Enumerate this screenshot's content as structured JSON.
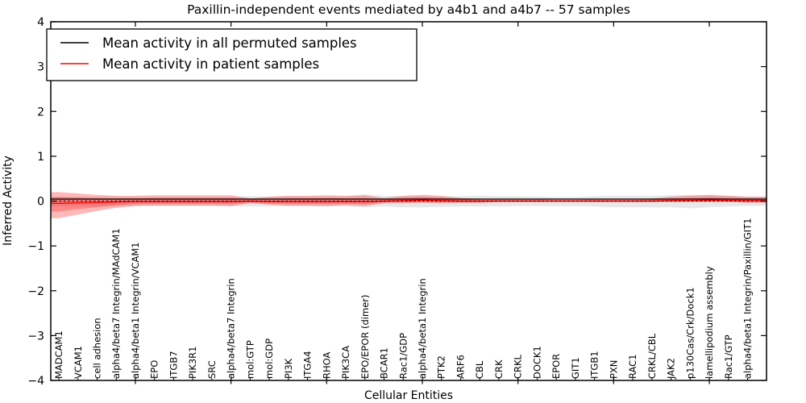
{
  "figure": {
    "title": "Paxillin-independent events mediated by a4b1 and a4b7 -- 57 samples",
    "background": "#ffffff"
  },
  "axes": {
    "ylabel": "Inferred Activity",
    "xlabel": "Cellular Entities"
  },
  "legend": {
    "entries": [
      {
        "label": "Mean activity in all permuted samples",
        "color": "#000000"
      },
      {
        "label": "Mean activity in patient samples",
        "color": "#ff0000"
      }
    ]
  },
  "chart_data": {
    "type": "line",
    "title": "Paxillin-independent events mediated by a4b1 and a4b7 -- 57 samples",
    "xlabel": "Cellular Entities",
    "ylabel": "Inferred Activity",
    "ylim": [
      -4,
      4
    ],
    "grid": false,
    "legend_position": "upper left",
    "y_ticks": [
      {
        "value": -4,
        "label": "−4"
      },
      {
        "value": -3,
        "label": "−3"
      },
      {
        "value": -2,
        "label": "−2"
      },
      {
        "value": -1,
        "label": "−1"
      },
      {
        "value": 0,
        "label": "0"
      },
      {
        "value": 1,
        "label": "1"
      },
      {
        "value": 2,
        "label": "2"
      },
      {
        "value": 3,
        "label": "3"
      },
      {
        "value": 4,
        "label": "4"
      }
    ],
    "x_major_tick_indices": [
      4,
      9,
      14,
      19,
      24,
      29,
      34
    ],
    "categories": [
      "MADCAM1",
      "VCAM1",
      "cell adhesion",
      "alpha4/beta7 Integrin/MAdCAM1",
      "alpha4/beta1 Integrin/VCAM1",
      "EPO",
      "ITGB7",
      "PIK3R1",
      "SRC",
      "alpha4/beta7 Integrin",
      "mol:GTP",
      "mol:GDP",
      "PI3K",
      "ITGA4",
      "RHOA",
      "PIK3CA",
      "EPO/EPOR (dimer)",
      "BCAR1",
      "Rac1/GDP",
      "alpha4/beta1 Integrin",
      "PTK2",
      "ARF6",
      "CBL",
      "CRK",
      "CRKL",
      "DOCK1",
      "EPOR",
      "GIT1",
      "ITGB1",
      "PXN",
      "RAC1",
      "CRKL/CBL",
      "JAK2",
      "p130Cas/Crk/Dock1",
      "lamellipodium assembly",
      "Rac1/GTP",
      "alpha4/beta1 Integrin/Paxillin/GIT1"
    ],
    "series": [
      {
        "name": "Mean activity in all permuted samples",
        "color": "#000000",
        "style": "solid",
        "width": 1.3,
        "values": [
          0.045,
          0.045,
          0.045,
          0.045,
          0.045,
          0.045,
          0.045,
          0.045,
          0.045,
          0.045,
          0.045,
          0.045,
          0.045,
          0.045,
          0.045,
          0.045,
          0.045,
          0.045,
          0.045,
          0.045,
          0.045,
          0.045,
          0.045,
          0.045,
          0.045,
          0.045,
          0.045,
          0.045,
          0.045,
          0.045,
          0.045,
          0.045,
          0.045,
          0.045,
          0.045,
          0.045,
          0.045
        ]
      },
      {
        "name": "Mean activity in patient samples",
        "color": "#ff0000",
        "style": "solid",
        "width": 1.4,
        "values": [
          -0.05,
          -0.04,
          -0.03,
          -0.02,
          -0.01,
          -0.01,
          -0.01,
          -0.01,
          -0.01,
          -0.01,
          0,
          -0.01,
          -0.01,
          -0.01,
          -0.01,
          -0.01,
          -0.01,
          0,
          0.01,
          0.02,
          0.01,
          0,
          0,
          0,
          0,
          0,
          0,
          0,
          0,
          0,
          0,
          0,
          0.01,
          0.015,
          0.02,
          0.015,
          0.01
        ]
      },
      {
        "name": "zero-reference",
        "color": "#000000",
        "style": "dashed",
        "width": 1.0,
        "values": [
          0,
          0,
          0,
          0,
          0,
          0,
          0,
          0,
          0,
          0,
          0,
          0,
          0,
          0,
          0,
          0,
          0,
          0,
          0,
          0,
          0,
          0,
          0,
          0,
          0,
          0,
          0,
          0,
          0,
          0,
          0,
          0,
          0,
          0,
          0,
          0,
          0
        ]
      }
    ],
    "bands": [
      {
        "name": "permuted-samples-std",
        "color": "#000000",
        "opacity": 0.09,
        "upper": [
          0.1,
          0.1,
          0.1,
          0.09,
          0.09,
          0.09,
          0.09,
          0.09,
          0.1,
          0.1,
          0.11,
          0.1,
          0.1,
          0.1,
          0.1,
          0.1,
          0.15,
          0.12,
          0.11,
          0.11,
          0.1,
          0.11,
          0.12,
          0.11,
          0.11,
          0.1,
          0.09,
          0.09,
          0.11,
          0.12,
          0.12,
          0.12,
          0.13,
          0.14,
          0.13,
          0.12,
          0.1
        ],
        "lower": [
          -0.12,
          -0.12,
          -0.12,
          -0.12,
          -0.11,
          -0.11,
          -0.11,
          -0.11,
          -0.11,
          -0.12,
          -0.12,
          -0.12,
          -0.12,
          -0.12,
          -0.12,
          -0.12,
          -0.14,
          -0.12,
          -0.14,
          -0.14,
          -0.13,
          -0.12,
          -0.12,
          -0.12,
          -0.11,
          -0.11,
          -0.11,
          -0.11,
          -0.12,
          -0.14,
          -0.14,
          -0.14,
          -0.14,
          -0.16,
          -0.14,
          -0.12,
          -0.11
        ]
      },
      {
        "name": "patient-samples-std-outer",
        "color": "#ff0000",
        "opacity": 0.28,
        "upper": [
          0.2,
          0.17,
          0.14,
          0.12,
          0.12,
          0.13,
          0.13,
          0.13,
          0.13,
          0.13,
          0.06,
          0.1,
          0.12,
          0.12,
          0.13,
          0.12,
          0.13,
          0.07,
          0.12,
          0.14,
          0.12,
          0.07,
          0.05,
          0.04,
          0.04,
          0.04,
          0.03,
          0.03,
          0.04,
          0.04,
          0.04,
          0.06,
          0.1,
          0.12,
          0.14,
          0.12,
          0.1
        ],
        "lower": [
          -0.38,
          -0.3,
          -0.22,
          -0.15,
          -0.11,
          -0.1,
          -0.1,
          -0.1,
          -0.1,
          -0.11,
          -0.05,
          -0.08,
          -0.1,
          -0.1,
          -0.11,
          -0.09,
          -0.11,
          -0.05,
          -0.05,
          -0.04,
          -0.05,
          -0.04,
          -0.04,
          -0.02,
          -0.02,
          -0.02,
          -0.015,
          -0.015,
          -0.02,
          -0.02,
          -0.02,
          -0.02,
          -0.02,
          -0.02,
          -0.02,
          -0.02,
          -0.04
        ]
      },
      {
        "name": "patient-samples-std-inner",
        "color": "#ff0000",
        "opacity": 0.26,
        "derived_from": "patient-samples-std-outer",
        "scale_about_patient_mean": 0.55
      }
    ]
  }
}
